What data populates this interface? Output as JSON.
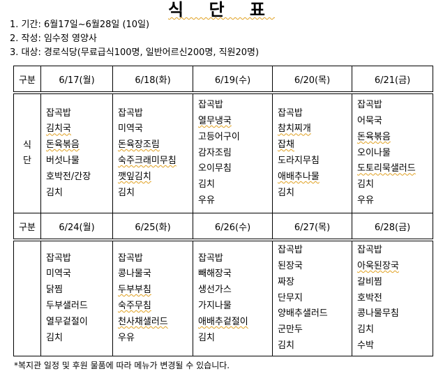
{
  "title": "식 단 표",
  "info": [
    "1. 기간: 6월17일~6월28일 (10일)",
    "2. 작성: 임수정 영양사",
    "3. 대상: 경로식당(무료급식100명, 일반어르신200명, 직원20명)"
  ],
  "table": {
    "header_label": "구분",
    "meal_label": [
      "식",
      "단"
    ],
    "weeks": [
      {
        "days": [
          "6/17(월)",
          "6/18(화)",
          "6/19(수)",
          "6/20(목)",
          "6/21(금)"
        ],
        "menus": [
          [
            "잡곡밥",
            "김치국",
            "돈육볶음",
            "버섯나물",
            "호박전/간장",
            "김치"
          ],
          [
            "잡곡밥",
            "미역국",
            "돈육장조림",
            "숙주크래미무침",
            "깻잎김치",
            "김치"
          ],
          [
            "잡곡밥",
            "열무냉국",
            "고등어구이",
            "감자조림",
            "오이무침",
            "김치",
            "우유"
          ],
          [
            "잡곡밥",
            "참치찌개",
            "잡채",
            "도라지무침",
            "애배추나물",
            "김치"
          ],
          [
            "잡곡밥",
            "어묵국",
            "돈육볶음",
            "오이나물",
            "도토리묵샐러드",
            "김치",
            "우유"
          ]
        ]
      },
      {
        "days": [
          "6/24(월)",
          "6/25(화)",
          "6/26(수)",
          "6/27(목)",
          "6/28(금)"
        ],
        "menus": [
          [
            "잡곡밥",
            "미역국",
            "닭찜",
            "두부샐러드",
            "열무겉절이",
            "김치"
          ],
          [
            "잡곡밥",
            "콩나물국",
            "두부부침",
            "숙주무침",
            "천사채샐러드",
            "우유"
          ],
          [
            "잡곡밥",
            "빼해장국",
            "생선가스",
            "가지나물",
            "애배추겉절이",
            "김치"
          ],
          [
            "잡곡밥",
            "된장국",
            "짜장",
            "단무지",
            "양배추샐러드",
            "군만두",
            "김치"
          ],
          [
            "잡곡밥",
            "아욱된장국",
            "갈비찜",
            "호박전",
            "콩나물무침",
            "김치",
            "수박"
          ]
        ]
      }
    ]
  },
  "spellcheck_marked": [
    "김치국",
    "돈육볶음",
    "돈육장조림",
    "숙주크래미무침",
    "깻잎김치",
    "열무냉국",
    "참치찌개",
    "잡채",
    "애배추나물",
    "도토리묵샐러드",
    "두부부침",
    "숙주무침",
    "천사채샐러드",
    "애배추겉절이",
    "아욱된장국"
  ],
  "note": "*복지관 일정 및 후원 물품에 따라 메뉴가 변경될 수 있습니다."
}
